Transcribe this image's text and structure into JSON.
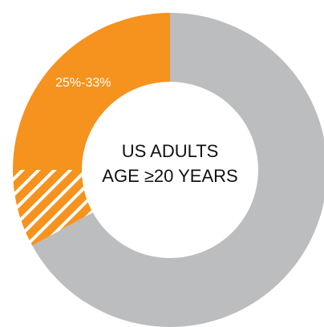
{
  "chart_data": {
    "type": "pie",
    "style": "donut",
    "center_label": [
      "US ADULTS",
      "AGE ≥20 YEARS"
    ],
    "slices": [
      {
        "label": "",
        "value": 67,
        "color": "#bcbdbe",
        "pattern": "solid"
      },
      {
        "label": "",
        "value": 8,
        "color": "#f6921e",
        "pattern": "hatched"
      },
      {
        "label": "25%-33%",
        "value": 25,
        "color": "#f6921e",
        "pattern": "solid"
      }
    ],
    "legend": "none"
  }
}
